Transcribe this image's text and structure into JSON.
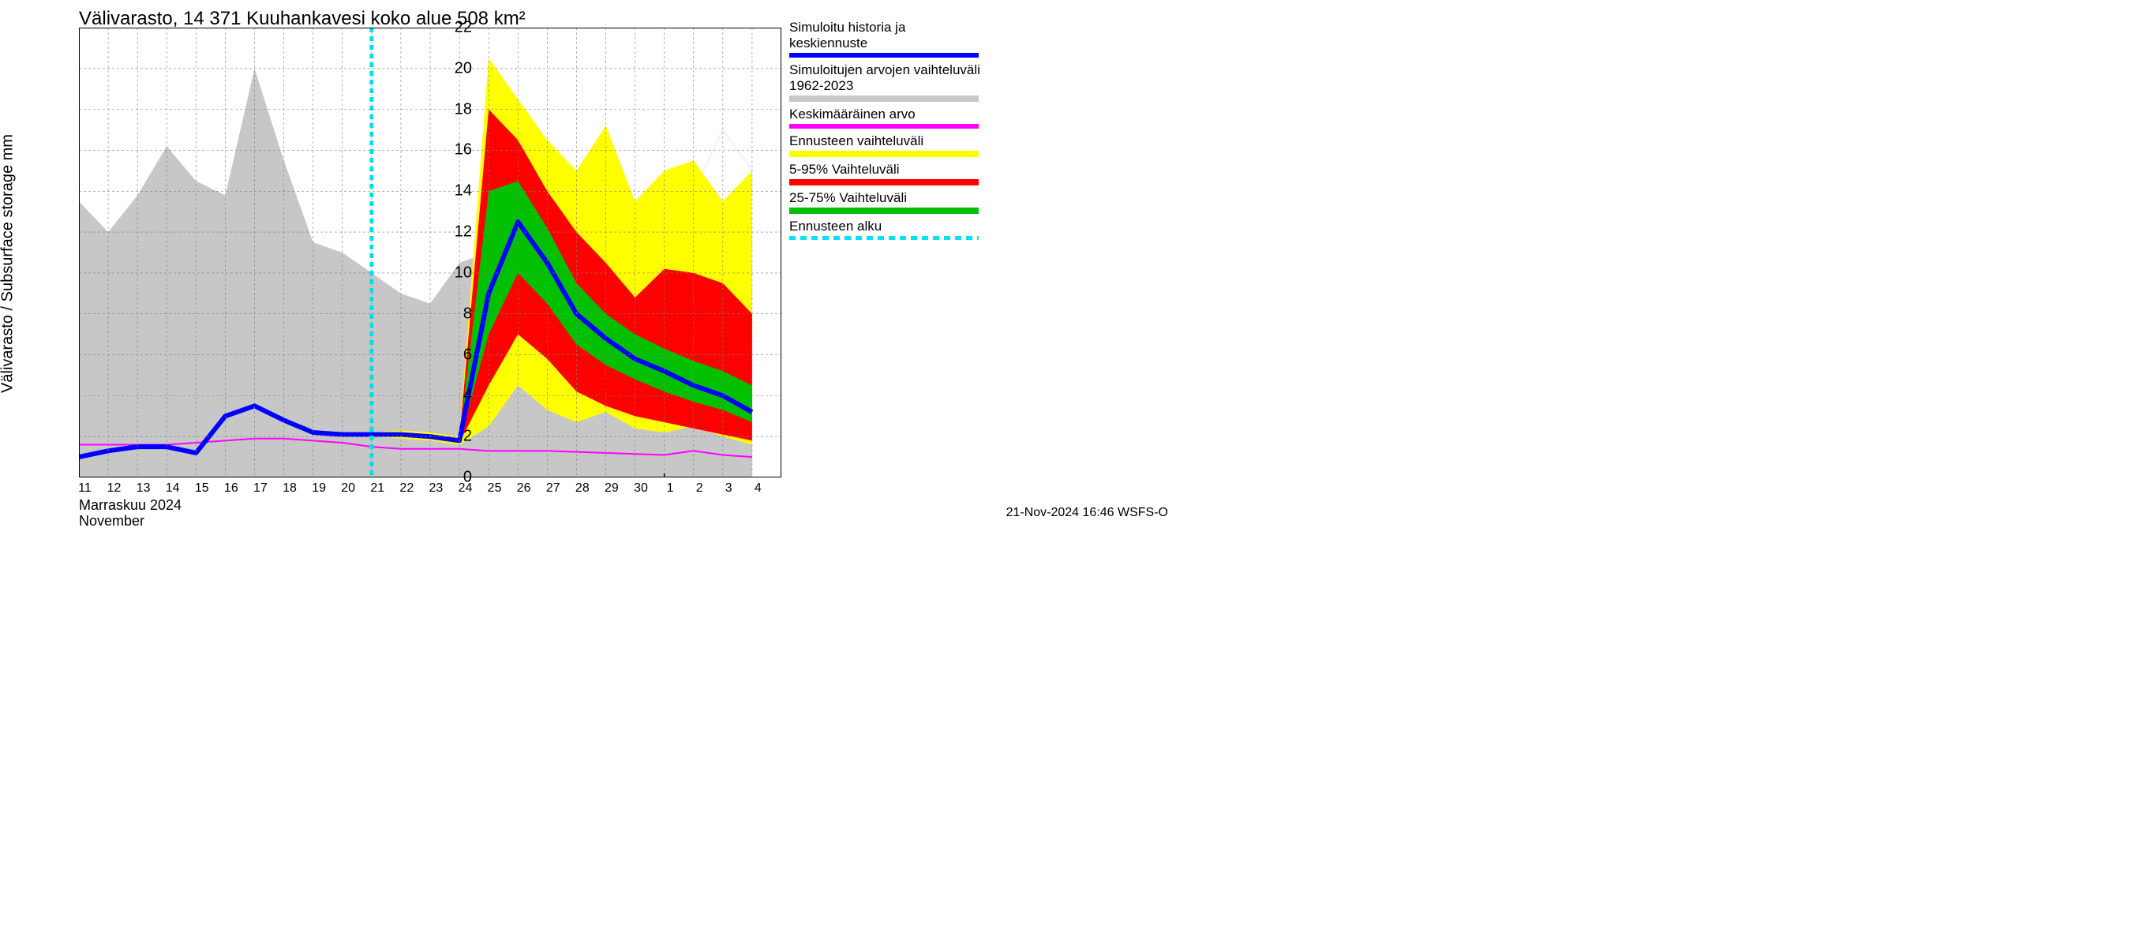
{
  "chart": {
    "type": "area_line_forecast",
    "title": "Välivarasto, 14 371 Kuuhankavesi koko alue 508 km²",
    "y_axis_label": "Välivarasto / Subsurface storage  mm",
    "x_axis": {
      "month_line1": "Marraskuu 2024",
      "month_line2": "November",
      "categories": [
        "11",
        "12",
        "13",
        "14",
        "15",
        "16",
        "17",
        "18",
        "19",
        "20",
        "21",
        "22",
        "23",
        "24",
        "25",
        "26",
        "27",
        "28",
        "29",
        "30",
        "1",
        "2",
        "3",
        "4"
      ],
      "n_points": 24
    },
    "y_axis": {
      "min": 0,
      "max": 22,
      "tick_step": 2,
      "ticks": [
        0,
        2,
        4,
        6,
        8,
        10,
        12,
        14,
        16,
        18,
        20,
        22
      ]
    },
    "forecast_start_index": 10,
    "colors": {
      "background": "#ffffff",
      "plot_background": "#ffffff",
      "grid": "#808080",
      "axis": "#000000",
      "historical_band": "#c7c7c7",
      "hist_mean_upper": "#f5f5f5",
      "blue_line": "#0000ff",
      "mean_line": "#ff00ff",
      "yellow_band": "#ffff00",
      "red_band": "#ff0000",
      "green_band": "#00c000",
      "forecast_marker": "#00e0ff",
      "text": "#000000"
    },
    "line_width_main": 6,
    "line_width_mean": 2,
    "forecast_marker_dash": "6,5",
    "series": {
      "hist_band_upper": [
        13.5,
        12,
        13.8,
        16.2,
        14.5,
        13.8,
        20,
        15.5,
        11.5,
        11,
        10,
        9,
        8.5,
        10.5,
        11,
        11.5,
        11,
        9.5,
        10,
        10.5,
        9.3,
        10,
        10.5,
        12.5
      ],
      "hist_band_lower": [
        0,
        0,
        0,
        0,
        0,
        0,
        0,
        0,
        0,
        0,
        0,
        0,
        0,
        0,
        0,
        0,
        0,
        0,
        0,
        0,
        0,
        0,
        0,
        0
      ],
      "hist_mean_upper": [
        null,
        null,
        null,
        null,
        null,
        null,
        null,
        null,
        null,
        null,
        null,
        null,
        null,
        null,
        null,
        null,
        null,
        null,
        null,
        null,
        12,
        14,
        17,
        15
      ],
      "mean_line": [
        1.6,
        1.6,
        1.6,
        1.6,
        1.7,
        1.8,
        1.9,
        1.9,
        1.8,
        1.7,
        1.5,
        1.4,
        1.4,
        1.4,
        1.3,
        1.3,
        1.3,
        1.25,
        1.2,
        1.15,
        1.1,
        1.3,
        1.1,
        1.0
      ],
      "blue_line": [
        1.0,
        1.3,
        1.5,
        1.5,
        1.2,
        3.0,
        3.5,
        2.8,
        2.2,
        2.1,
        2.1,
        2.1,
        2.0,
        1.8,
        9.0,
        12.5,
        10.5,
        8.0,
        6.8,
        5.8,
        5.2,
        4.5,
        4.0,
        3.2
      ],
      "yellow_upper": [
        null,
        null,
        null,
        null,
        null,
        null,
        null,
        null,
        null,
        null,
        2.2,
        2.3,
        2.2,
        2.0,
        20.5,
        18.5,
        16.5,
        15.0,
        17.2,
        13.5,
        15.0,
        15.5,
        13.5,
        15.0
      ],
      "red_upper": [
        null,
        null,
        null,
        null,
        null,
        null,
        null,
        null,
        null,
        null,
        2.15,
        2.2,
        2.1,
        1.9,
        18.0,
        16.5,
        14.0,
        12.0,
        10.5,
        8.8,
        10.2,
        10.0,
        9.5,
        8.0
      ],
      "green_upper": [
        null,
        null,
        null,
        null,
        null,
        null,
        null,
        null,
        null,
        null,
        2.12,
        2.15,
        2.05,
        1.85,
        14.0,
        14.5,
        12.2,
        9.5,
        8.0,
        7.0,
        6.3,
        5.7,
        5.2,
        4.5
      ],
      "green_lower": [
        null,
        null,
        null,
        null,
        null,
        null,
        null,
        null,
        null,
        null,
        2.08,
        2.05,
        1.95,
        1.75,
        7.0,
        10.0,
        8.5,
        6.5,
        5.5,
        4.8,
        4.2,
        3.7,
        3.3,
        2.7
      ],
      "red_lower": [
        null,
        null,
        null,
        null,
        null,
        null,
        null,
        null,
        null,
        null,
        2.05,
        2.0,
        1.9,
        1.7,
        4.5,
        7.0,
        5.8,
        4.2,
        3.5,
        3.0,
        2.7,
        2.4,
        2.1,
        1.8
      ],
      "yellow_lower": [
        null,
        null,
        null,
        null,
        null,
        null,
        null,
        null,
        null,
        null,
        2.0,
        1.9,
        1.8,
        1.6,
        2.5,
        4.5,
        3.3,
        2.7,
        3.2,
        2.4,
        2.2,
        2.5,
        2.0,
        1.6
      ]
    },
    "legend": [
      {
        "label": "Simuloitu historia ja keskiennuste",
        "type": "line",
        "color": "#0000ff"
      },
      {
        "label": "Simuloitujen arvojen vaihteluväli 1962-2023",
        "type": "area",
        "color": "#c7c7c7"
      },
      {
        "label": "Keskimääräinen arvo",
        "type": "line",
        "color": "#ff00ff"
      },
      {
        "label": "Ennusteen vaihteluväli",
        "type": "area",
        "color": "#ffff00"
      },
      {
        "label": "5-95% Vaihteluväli",
        "type": "area",
        "color": "#ff0000"
      },
      {
        "label": "25-75% Vaihteluväli",
        "type": "area",
        "color": "#00c000"
      },
      {
        "label": "Ennusteen alku",
        "type": "dashed",
        "color": "#00e0ff"
      }
    ],
    "footer": "21-Nov-2024 16:46 WSFS-O",
    "title_fontsize": 24,
    "axis_label_fontsize": 20,
    "tick_fontsize": 18
  }
}
